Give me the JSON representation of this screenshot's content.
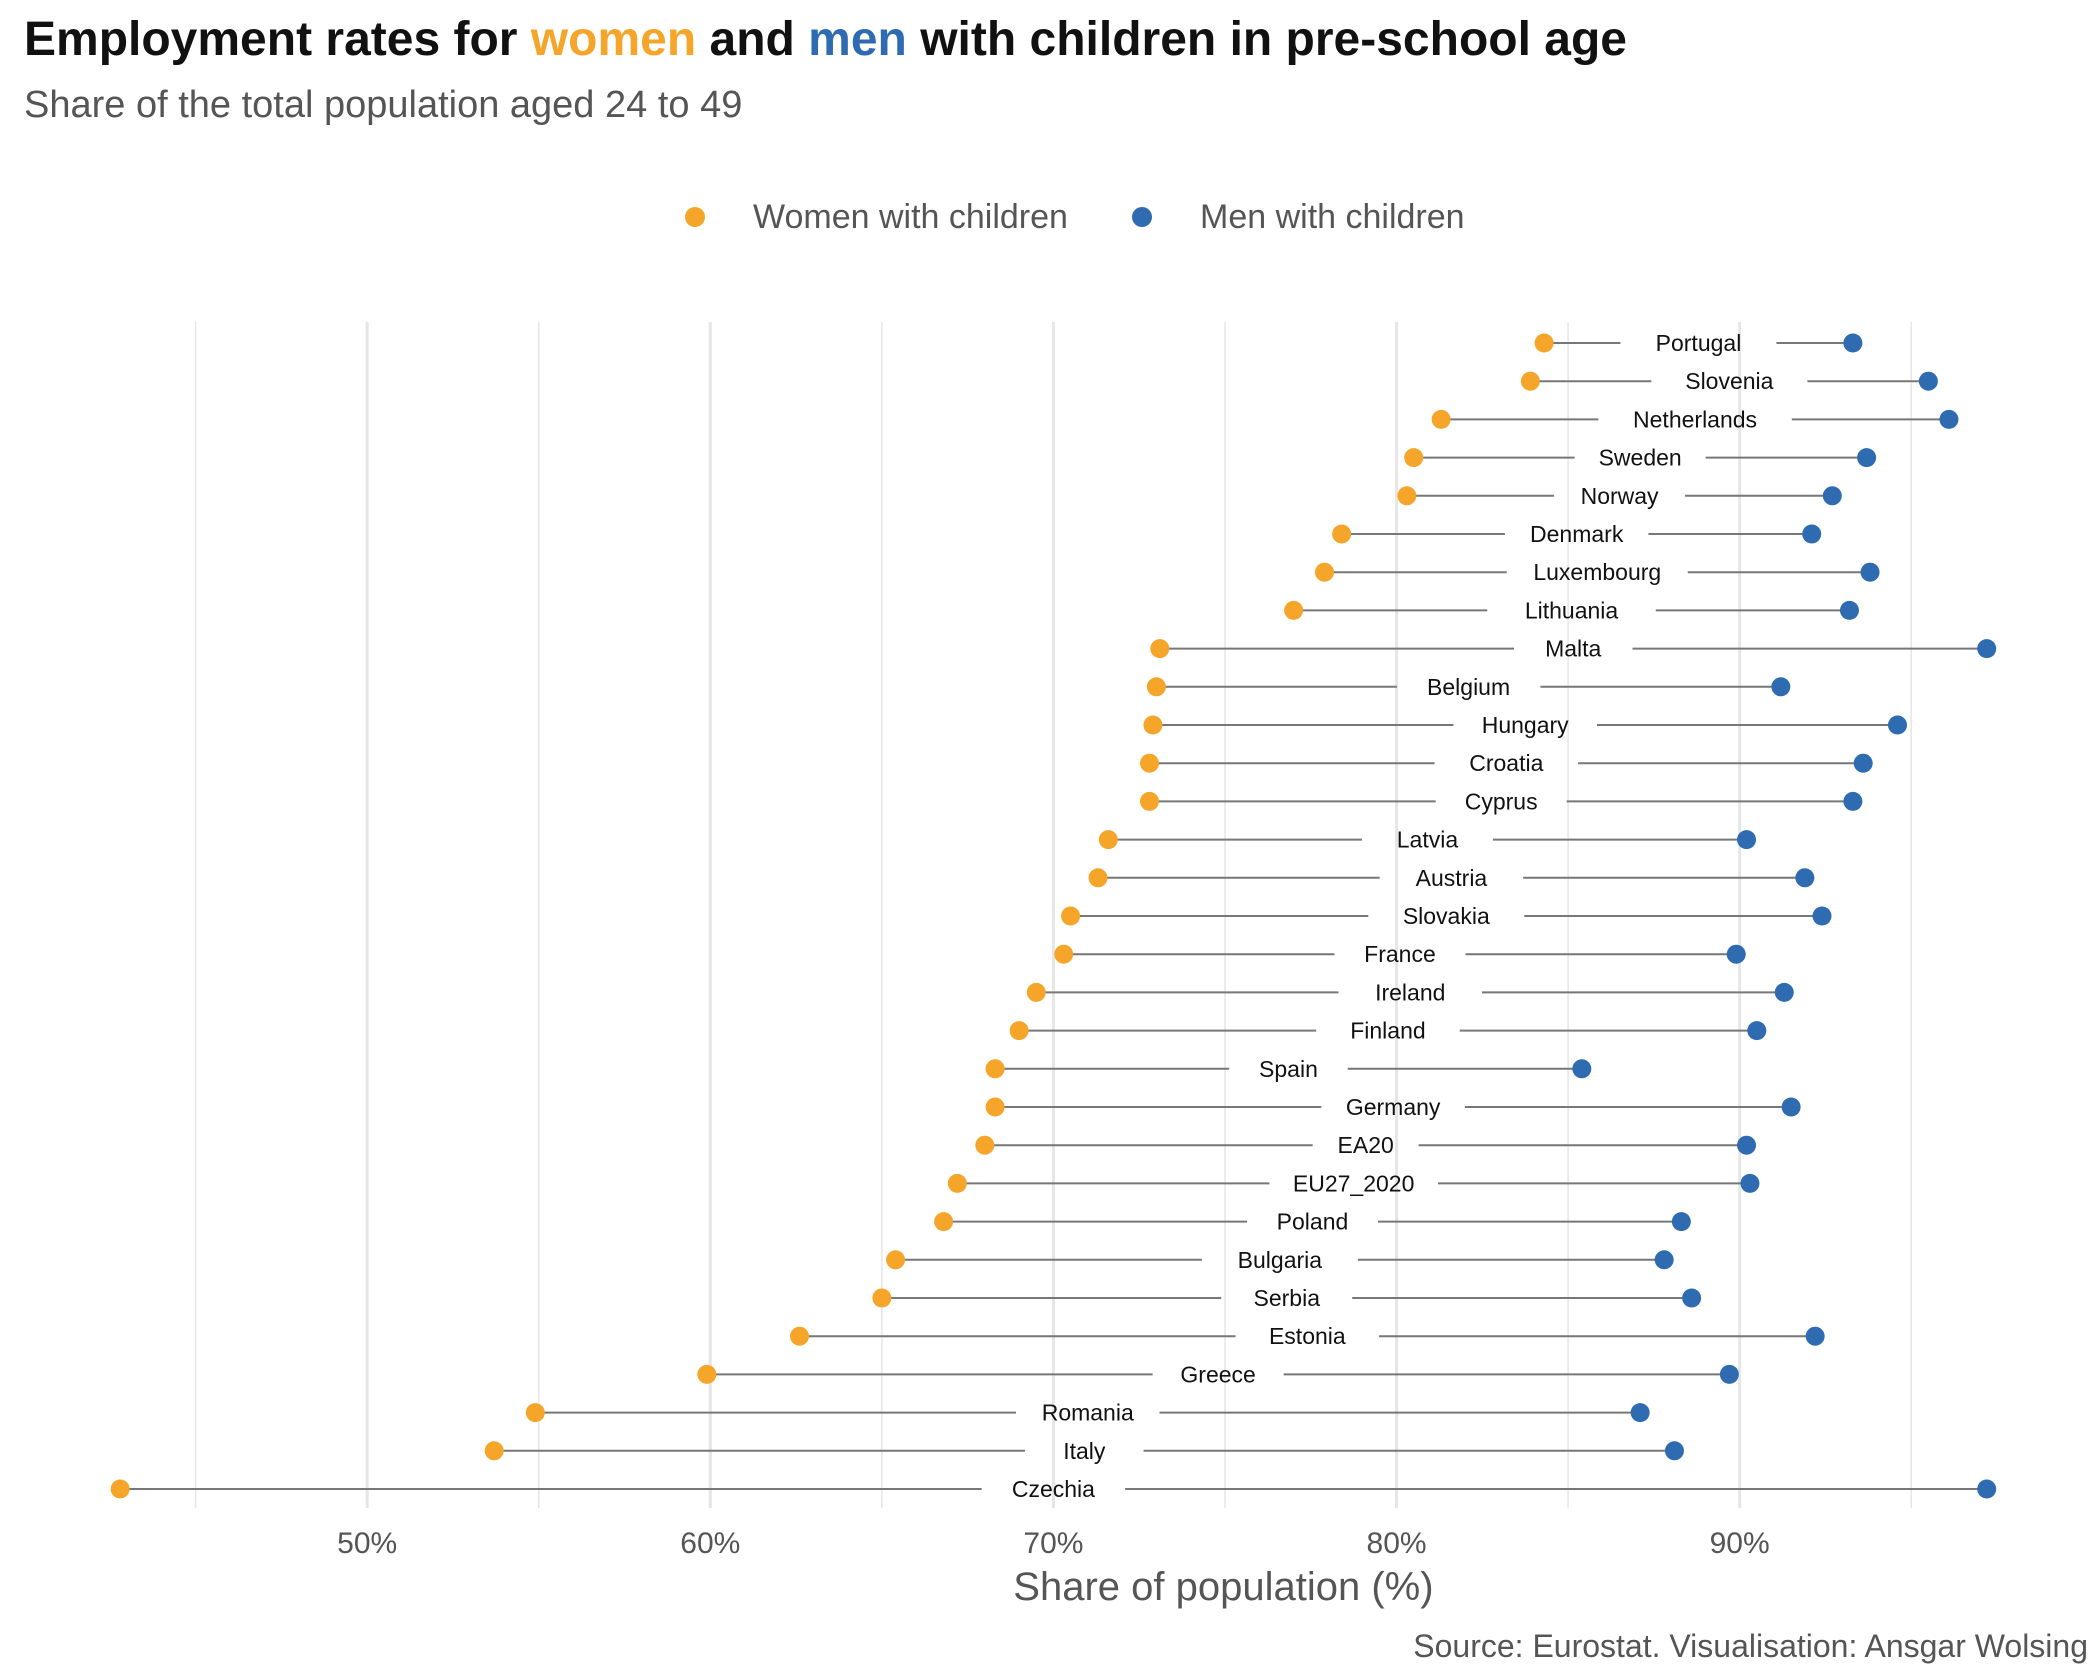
{
  "title": {
    "part1": "Employment rates for ",
    "women": "women",
    "part2": " and ",
    "men": "men",
    "part3": " with children in pre-school age"
  },
  "subtitle": "Share of the total population aged 24 to 49",
  "legend": {
    "women_label": "Women with children",
    "men_label": "Men with children"
  },
  "caption": "Source: Eurostat. Visualisation: Ansgar Wolsing",
  "colors": {
    "women": "#F5A52A",
    "men": "#2E6BB0",
    "segment": "#777777",
    "grid": "#E6E6E6",
    "text": "#111111",
    "muted": "#555555"
  },
  "chart_data": {
    "type": "dumbbell",
    "xlabel": "Share of population (%)",
    "ylabel": "",
    "xlim": [
      43,
      97.5
    ],
    "xticks": [
      50,
      60,
      70,
      80,
      90
    ],
    "xtick_labels": [
      "50%",
      "60%",
      "70%",
      "80%",
      "90%"
    ],
    "grid": true,
    "legend_position": "top",
    "series": [
      {
        "name": "Women with children",
        "key": "women"
      },
      {
        "name": "Men with children",
        "key": "men"
      }
    ],
    "categories": [
      "Portugal",
      "Slovenia",
      "Netherlands",
      "Sweden",
      "Norway",
      "Denmark",
      "Luxembourg",
      "Lithuania",
      "Malta",
      "Belgium",
      "Hungary",
      "Croatia",
      "Cyprus",
      "Latvia",
      "Austria",
      "Slovakia",
      "France",
      "Ireland",
      "Finland",
      "Spain",
      "Germany",
      "EA20",
      "EU27_2020",
      "Poland",
      "Bulgaria",
      "Serbia",
      "Estonia",
      "Greece",
      "Romania",
      "Italy",
      "Czechia"
    ],
    "women": [
      84.3,
      83.9,
      81.3,
      80.5,
      80.3,
      78.4,
      77.9,
      77.0,
      73.1,
      73.0,
      72.9,
      72.8,
      72.8,
      71.6,
      71.3,
      70.5,
      70.3,
      69.5,
      69.0,
      68.3,
      68.3,
      68.0,
      67.2,
      66.8,
      65.4,
      65.0,
      62.6,
      59.9,
      54.9,
      53.7,
      42.8
    ],
    "men": [
      93.3,
      95.5,
      96.1,
      93.7,
      92.7,
      92.1,
      93.8,
      93.2,
      97.2,
      91.2,
      94.6,
      93.6,
      93.3,
      90.2,
      91.9,
      92.4,
      89.9,
      91.3,
      90.5,
      85.4,
      91.5,
      90.2,
      90.3,
      88.3,
      87.8,
      88.6,
      92.2,
      89.7,
      87.1,
      88.1,
      97.2
    ]
  }
}
